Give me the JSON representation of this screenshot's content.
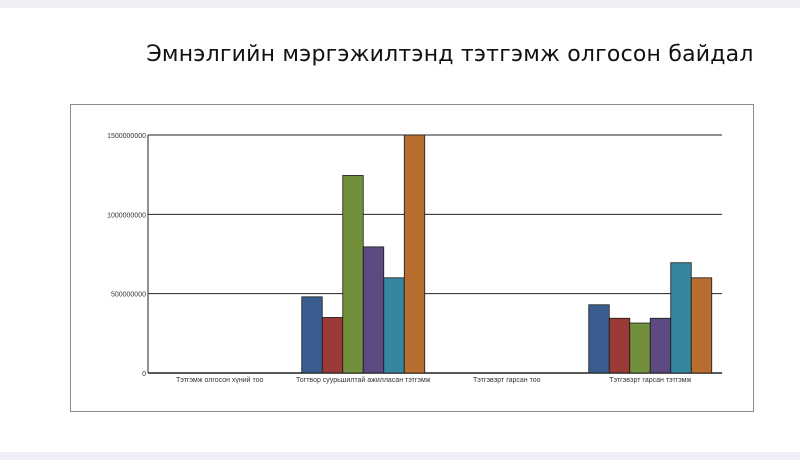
{
  "page": {
    "title": "Эмнэлгийн мэргэжилтэнд тэтгэмж олгосон байдал"
  },
  "colors": [
    "#3a5d8f",
    "#993a37",
    "#72903b",
    "#5e4a82",
    "#35869f",
    "#b86d31"
  ],
  "chart_data": {
    "type": "bar",
    "title": "Эмнэлгийн мэргэжилтэнд тэтгэмж олгосон байдал",
    "xlabel": "",
    "ylabel": "",
    "ylim": [
      0,
      1500000000
    ],
    "yticks": [
      0,
      500000000,
      1000000000,
      1500000000
    ],
    "ytick_labels": [
      "0",
      "500000000",
      "1000000000",
      "1500000000"
    ],
    "grid": true,
    "legend": "none",
    "categories": [
      "Тэтгэмж олгосон хүний тоо",
      "Тогтвор суурьшилтай ажилласан тэтгэмж",
      "Тэтгэвэрт гарсан тоо",
      "Тэтгэвэрт гарсан тэтгэмж"
    ],
    "series": [
      {
        "values": [
          0,
          480000000,
          0,
          430000000
        ]
      },
      {
        "values": [
          0,
          350000000,
          0,
          345000000
        ]
      },
      {
        "values": [
          0,
          1245000000,
          0,
          315000000
        ]
      },
      {
        "values": [
          0,
          795000000,
          0,
          345000000
        ]
      },
      {
        "values": [
          0,
          600000000,
          0,
          695000000
        ]
      },
      {
        "values": [
          0,
          1500000000,
          0,
          600000000
        ]
      }
    ]
  }
}
